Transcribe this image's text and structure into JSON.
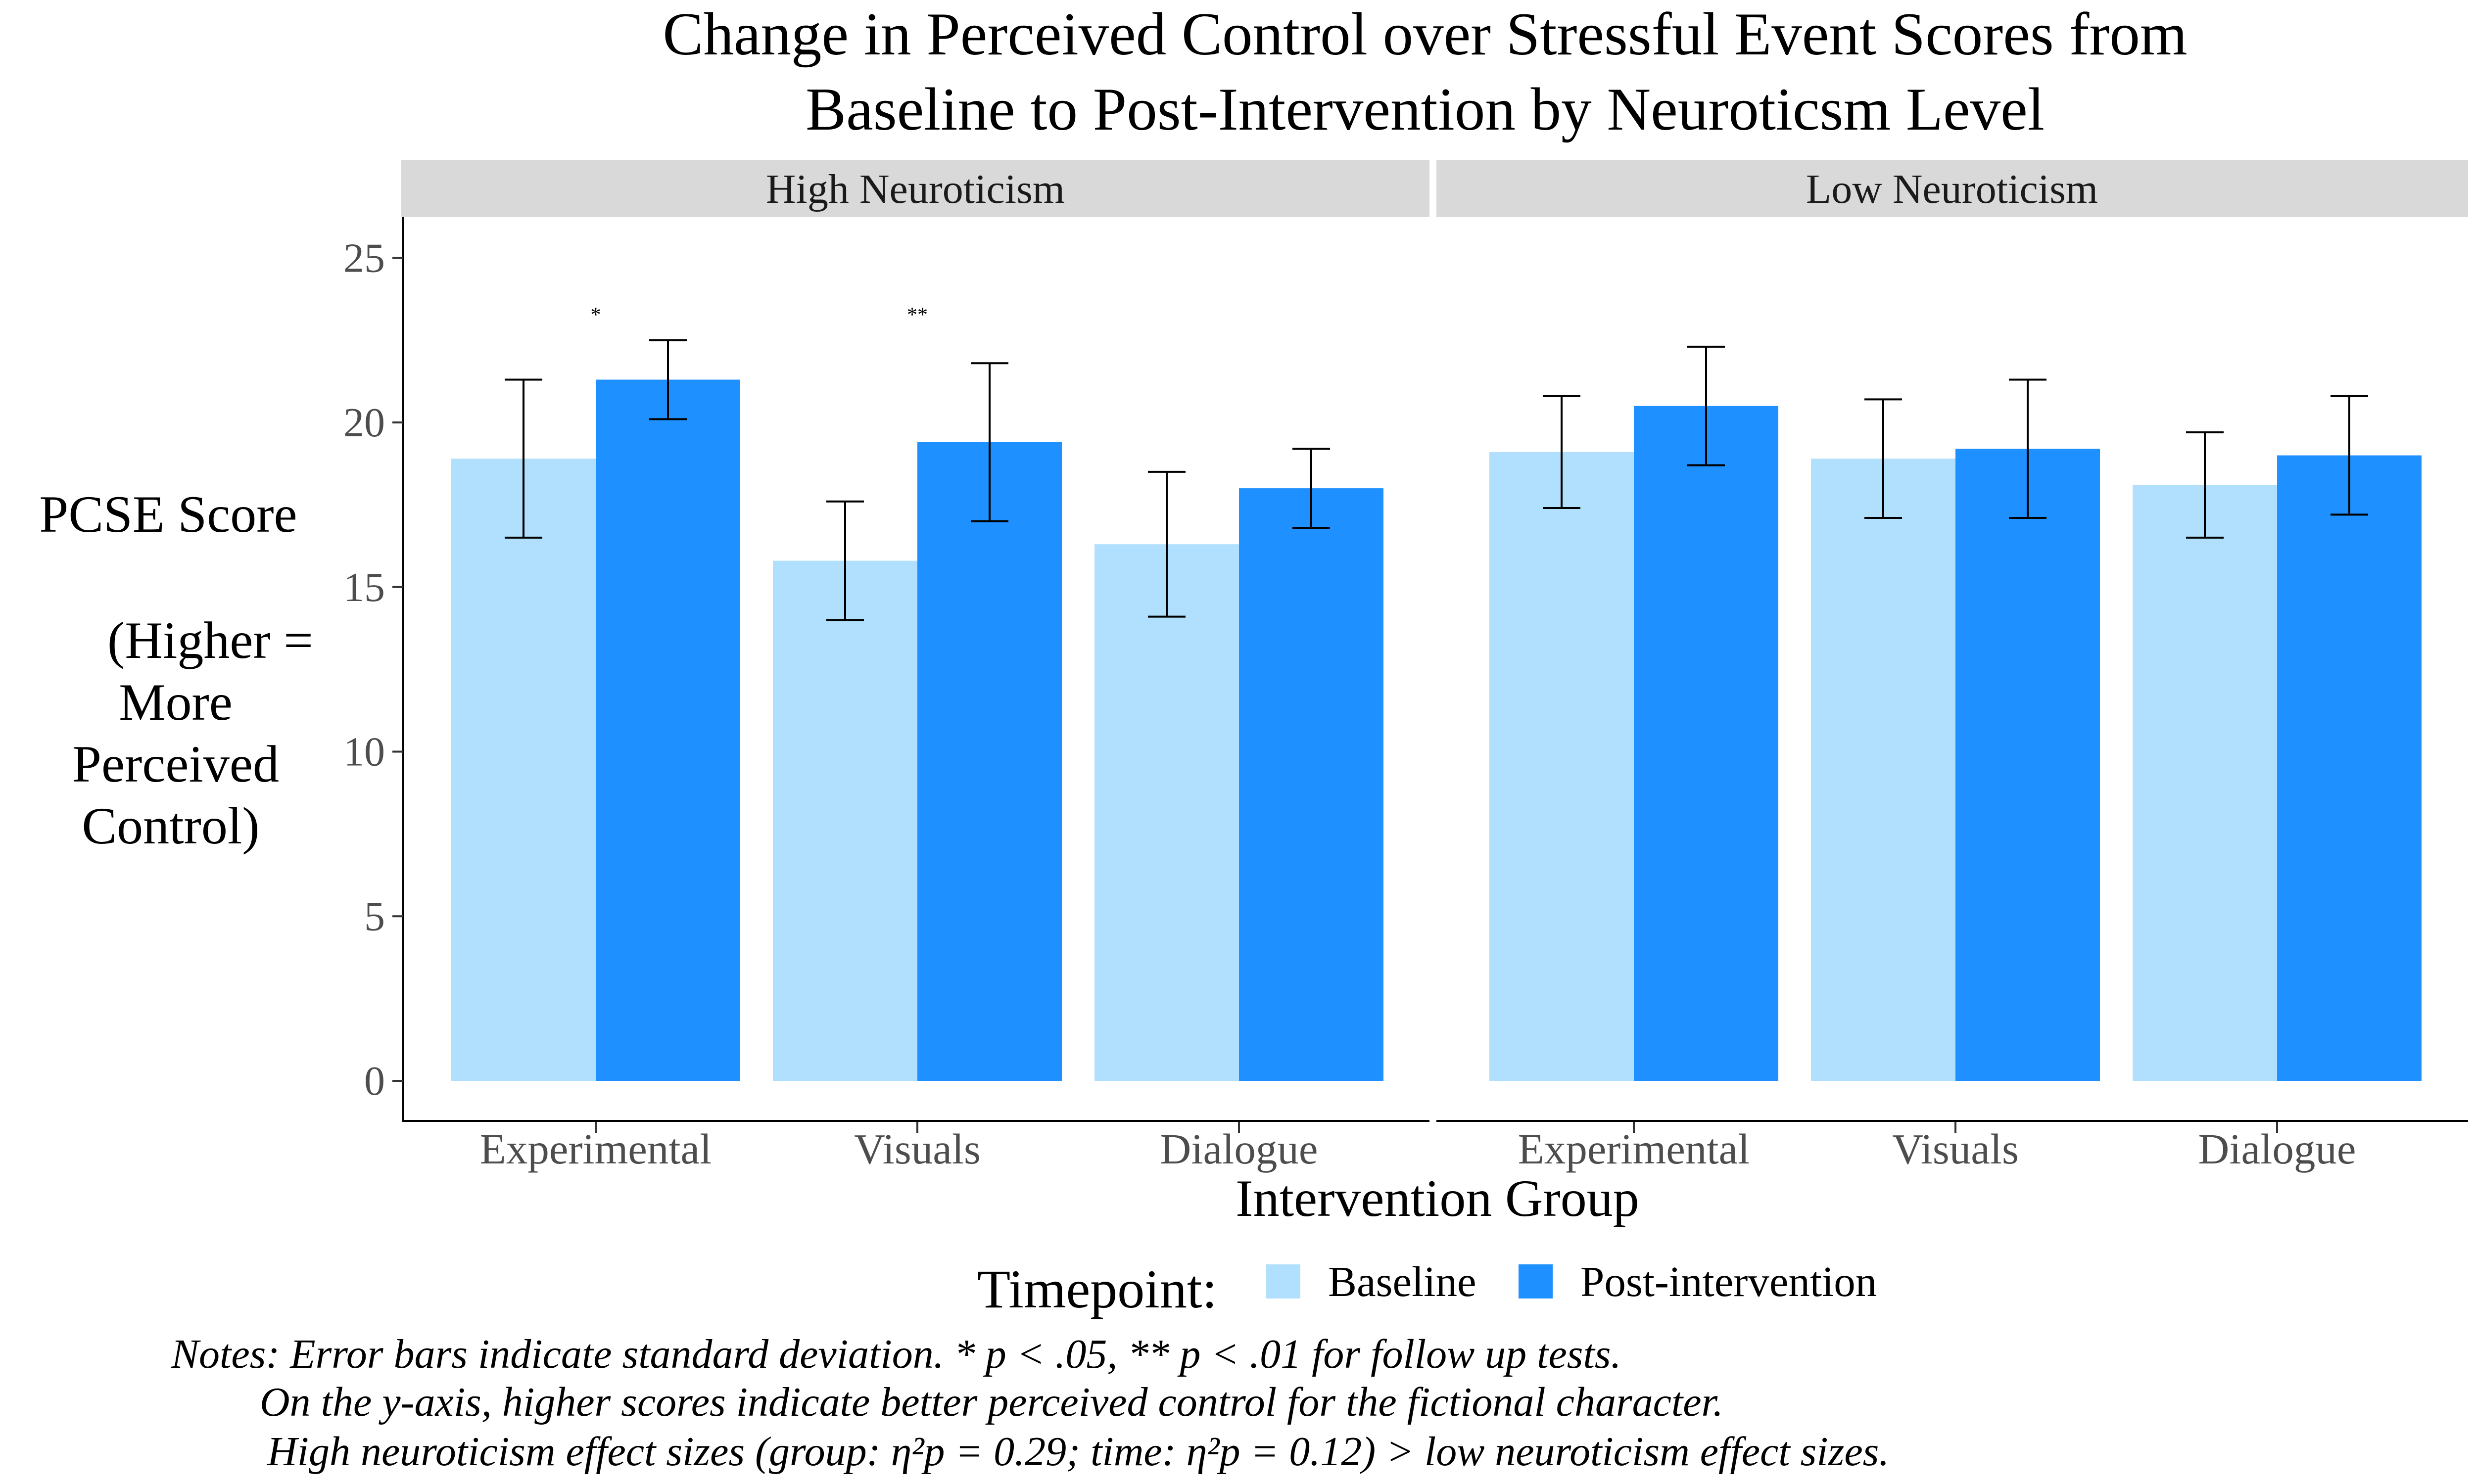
{
  "chart_data": {
    "type": "bar",
    "title_lines": [
      "Change in Perceived Control over Stressful Event Scores from",
      "Baseline to Post-Intervention by Neuroticsm Level"
    ],
    "xlabel": "Intervention Group",
    "ylabel_lines": [
      "PCSE Score",
      "(Higher =",
      "More",
      "Perceived",
      "Control)"
    ],
    "ylim": [
      0,
      26
    ],
    "yticks": [
      0,
      5,
      10,
      15,
      20,
      25
    ],
    "categories": [
      "Experimental",
      "Visuals",
      "Dialogue"
    ],
    "legend": {
      "title": "Timepoint:",
      "entries": [
        {
          "name": "Baseline",
          "color": "#b0e0fd"
        },
        {
          "name": "Post-intervention",
          "color": "#1e90ff"
        }
      ],
      "position": "bottom"
    },
    "panels": [
      {
        "label": "High Neuroticism",
        "series": [
          {
            "name": "Baseline",
            "values": [
              18.9,
              15.8,
              16.3
            ],
            "sd": [
              2.4,
              1.8,
              2.2
            ]
          },
          {
            "name": "Post-intervention",
            "values": [
              21.3,
              19.4,
              18.0
            ],
            "sd": [
              1.2,
              2.4,
              1.2
            ]
          }
        ],
        "significance": [
          "*",
          "**",
          ""
        ]
      },
      {
        "label": "Low Neuroticism",
        "series": [
          {
            "name": "Baseline",
            "values": [
              19.1,
              18.9,
              18.1
            ],
            "sd": [
              1.7,
              1.8,
              1.6
            ]
          },
          {
            "name": "Post-intervention",
            "values": [
              20.5,
              19.2,
              19.0
            ],
            "sd": [
              1.8,
              2.1,
              1.8
            ]
          }
        ],
        "significance": [
          "",
          "",
          ""
        ]
      }
    ],
    "notes": [
      "Notes: Error bars indicate standard deviation. * p < .05, ** p < .01 for follow up tests.",
      "On the y-axis, higher scores indicate better perceived control for the fictional character.",
      "High neuroticism effect sizes (group: η²p = 0.29; time: η²p = 0.12) > low neuroticism effect sizes."
    ]
  }
}
